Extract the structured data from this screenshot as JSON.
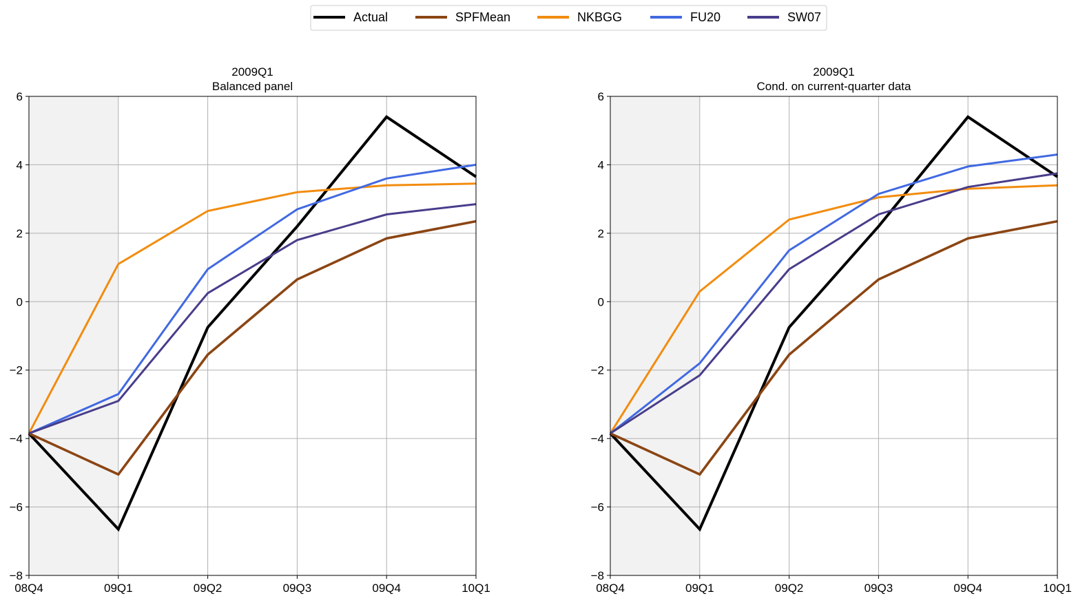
{
  "legend": {
    "placement": "top-center",
    "entries": [
      {
        "name": "Actual",
        "color": "#000000"
      },
      {
        "name": "SPFMean",
        "color": "#8B4513"
      },
      {
        "name": "NKBGG",
        "color": "#F28C0F"
      },
      {
        "name": "FU20",
        "color": "#4169E1"
      },
      {
        "name": "SW07",
        "color": "#483D8B"
      }
    ]
  },
  "chart_data": [
    {
      "type": "line",
      "title": "2009Q1",
      "subtitle": "Balanced panel",
      "categories": [
        "08Q4",
        "09Q1",
        "09Q2",
        "09Q3",
        "09Q4",
        "10Q1"
      ],
      "ylim": [
        -8,
        6
      ],
      "yticks": [
        -8,
        -6,
        -4,
        -2,
        0,
        2,
        4,
        6
      ],
      "grid": true,
      "shaded_region": [
        "08Q4",
        "09Q1"
      ],
      "series": [
        {
          "name": "Actual",
          "color": "#000000",
          "values": [
            -3.85,
            -6.65,
            -0.75,
            2.2,
            5.4,
            3.65
          ]
        },
        {
          "name": "SPFMean",
          "color": "#8B4513",
          "values": [
            -3.85,
            -5.05,
            -1.55,
            0.65,
            1.85,
            2.35
          ]
        },
        {
          "name": "NKBGG",
          "color": "#F28C0F",
          "values": [
            -3.85,
            1.1,
            2.65,
            3.2,
            3.4,
            3.45
          ]
        },
        {
          "name": "FU20",
          "color": "#4169E1",
          "values": [
            -3.85,
            -2.7,
            0.95,
            2.7,
            3.6,
            4.0
          ]
        },
        {
          "name": "SW07",
          "color": "#483D8B",
          "values": [
            -3.85,
            -2.9,
            0.25,
            1.8,
            2.55,
            2.85
          ]
        }
      ]
    },
    {
      "type": "line",
      "title": "2009Q1",
      "subtitle": "Cond. on current-quarter data",
      "categories": [
        "08Q4",
        "09Q1",
        "09Q2",
        "09Q3",
        "09Q4",
        "10Q1"
      ],
      "ylim": [
        -8,
        6
      ],
      "yticks": [
        -8,
        -6,
        -4,
        -2,
        0,
        2,
        4,
        6
      ],
      "grid": true,
      "shaded_region": [
        "08Q4",
        "09Q1"
      ],
      "series": [
        {
          "name": "Actual",
          "color": "#000000",
          "values": [
            -3.85,
            -6.65,
            -0.75,
            2.2,
            5.4,
            3.65
          ]
        },
        {
          "name": "SPFMean",
          "color": "#8B4513",
          "values": [
            -3.85,
            -5.05,
            -1.55,
            0.65,
            1.85,
            2.35
          ]
        },
        {
          "name": "NKBGG",
          "color": "#F28C0F",
          "values": [
            -3.85,
            0.3,
            2.4,
            3.05,
            3.3,
            3.4
          ]
        },
        {
          "name": "FU20",
          "color": "#4169E1",
          "values": [
            -3.85,
            -1.8,
            1.5,
            3.15,
            3.95,
            4.3
          ]
        },
        {
          "name": "SW07",
          "color": "#483D8B",
          "values": [
            -3.85,
            -2.15,
            0.95,
            2.55,
            3.35,
            3.75
          ]
        }
      ]
    }
  ]
}
